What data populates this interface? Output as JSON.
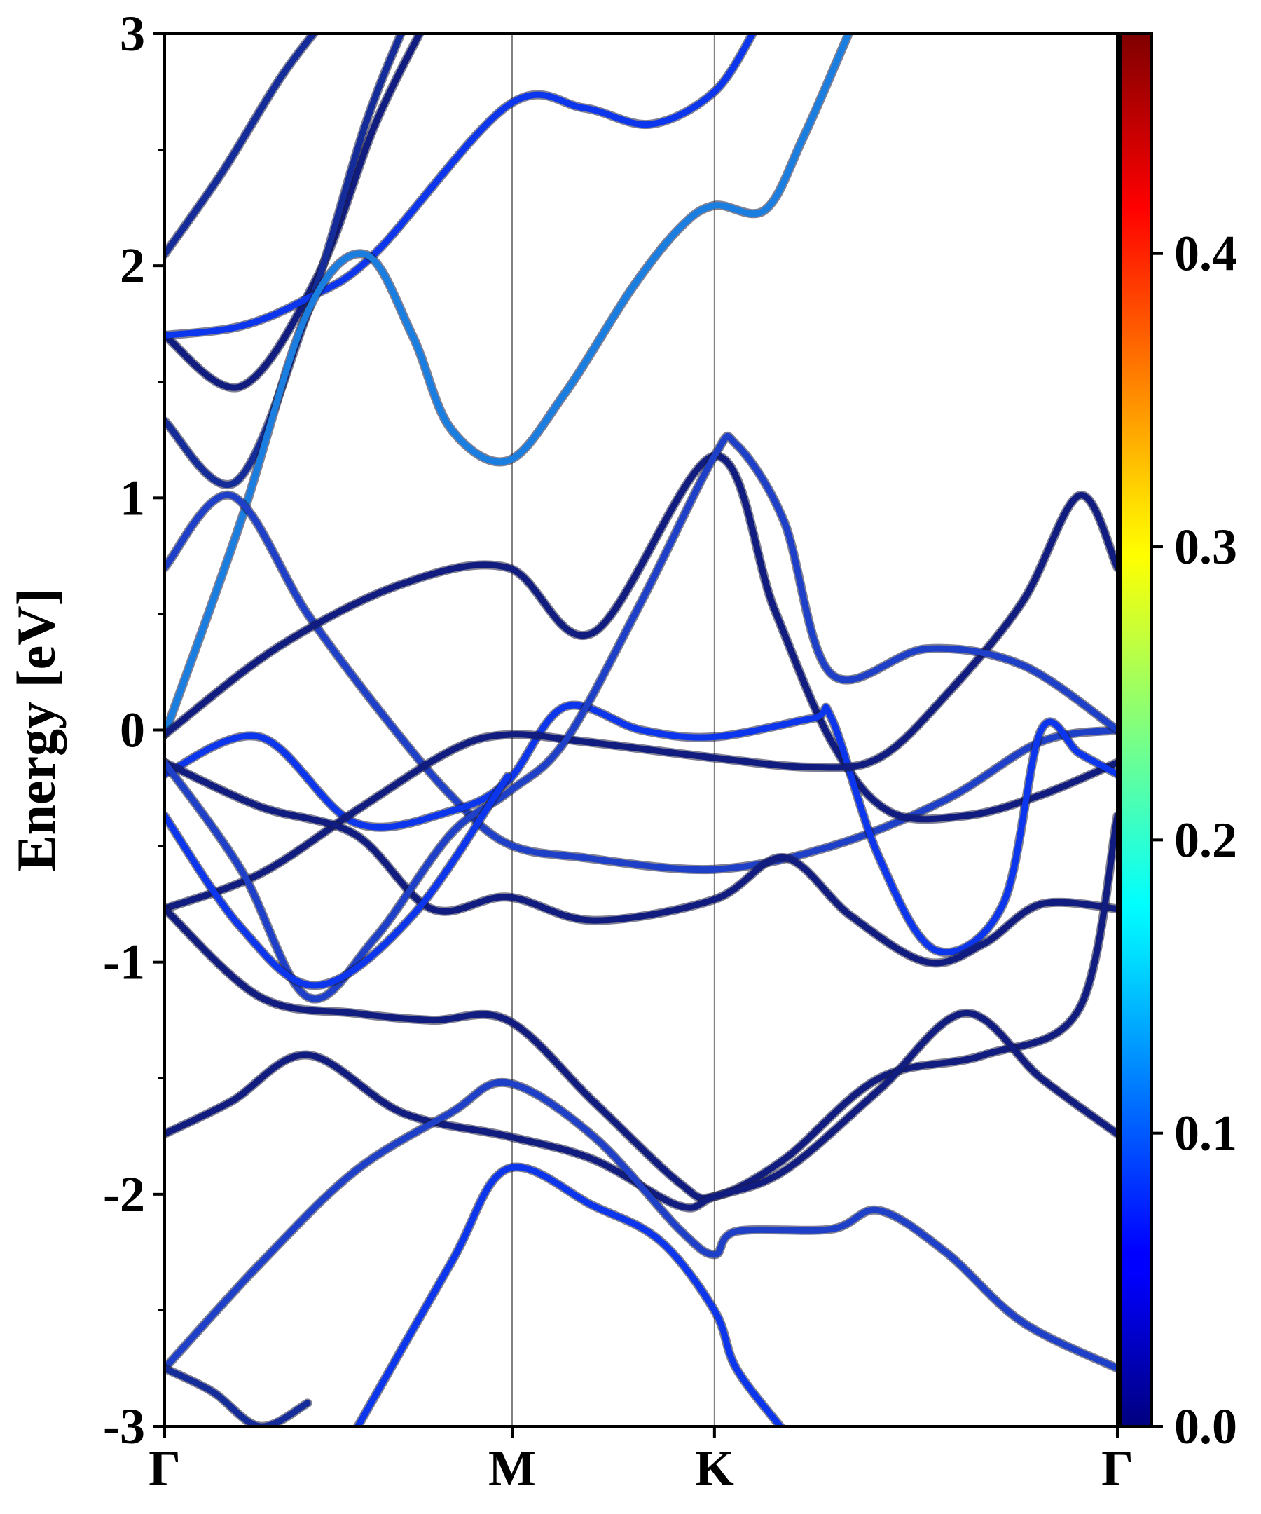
{
  "chart_data": {
    "type": "line",
    "ylabel": "Energy [eV]",
    "xlabel": "",
    "ylim": [
      -3,
      3
    ],
    "yticks": [
      {
        "value": 3,
        "label": "3"
      },
      {
        "value": 2,
        "label": "2"
      },
      {
        "value": 1,
        "label": "1"
      },
      {
        "value": 0,
        "label": "0"
      },
      {
        "value": -1,
        "label": "-1"
      },
      {
        "value": -2,
        "label": "-2"
      },
      {
        "value": -3,
        "label": "-3"
      }
    ],
    "xlim": [
      0,
      1
    ],
    "kpoints": [
      {
        "label": "Γ",
        "x": 0.0
      },
      {
        "label": "M",
        "x": 0.3647
      },
      {
        "label": "K",
        "x": 0.5771
      },
      {
        "label": "Γ",
        "x": 1.0
      }
    ],
    "grid": false,
    "colorbar": {
      "cmap": "jet",
      "range": [
        0.0,
        0.475
      ],
      "ticks": [
        {
          "value": 0.0,
          "label": "0.0"
        },
        {
          "value": 0.1,
          "label": "0.1"
        },
        {
          "value": 0.2,
          "label": "0.2"
        },
        {
          "value": 0.3,
          "label": "0.3"
        },
        {
          "value": 0.4,
          "label": "0.4"
        }
      ]
    },
    "series": [
      {
        "color": "#142c9a",
        "points": [
          [
            0.0,
            2.05
          ],
          [
            0.06,
            2.4
          ],
          [
            0.12,
            2.8
          ],
          [
            0.16,
            3.02
          ]
        ]
      },
      {
        "color": "#101c80",
        "points": [
          [
            0.0,
            1.7
          ],
          [
            0.08,
            1.48
          ],
          [
            0.16,
            1.95
          ],
          [
            0.22,
            2.6
          ],
          [
            0.27,
            3.02
          ]
        ]
      },
      {
        "color": "#142c9a",
        "points": [
          [
            0.0,
            1.33
          ],
          [
            0.075,
            1.07
          ],
          [
            0.15,
            1.8
          ],
          [
            0.21,
            2.6
          ],
          [
            0.25,
            3.02
          ]
        ]
      },
      {
        "color": "#0c35ee",
        "points": [
          [
            0.0,
            1.7
          ],
          [
            0.08,
            1.74
          ],
          [
            0.15,
            1.86
          ],
          [
            0.22,
            2.05
          ],
          [
            0.36,
            2.69
          ],
          [
            0.44,
            2.68
          ],
          [
            0.51,
            2.61
          ],
          [
            0.577,
            2.75
          ],
          [
            0.62,
            3.02
          ]
        ]
      },
      {
        "color": "#1a7ee0",
        "points": [
          [
            0.0,
            -0.02
          ],
          [
            0.08,
            0.9
          ],
          [
            0.15,
            1.8
          ],
          [
            0.21,
            2.05
          ],
          [
            0.26,
            1.7
          ],
          [
            0.3,
            1.3
          ],
          [
            0.36,
            1.16
          ],
          [
            0.42,
            1.45
          ],
          [
            0.49,
            1.9
          ],
          [
            0.54,
            2.16
          ],
          [
            0.577,
            2.26
          ],
          [
            0.63,
            2.24
          ],
          [
            0.67,
            2.55
          ],
          [
            0.72,
            3.02
          ]
        ]
      },
      {
        "color": "#1e40c8",
        "points": [
          [
            0.0,
            0.7
          ],
          [
            0.07,
            1.01
          ],
          [
            0.15,
            0.5
          ],
          [
            0.23,
            0.06
          ],
          [
            0.3,
            -0.28
          ],
          [
            0.36,
            -0.49
          ],
          [
            0.44,
            -0.55
          ],
          [
            0.577,
            -0.6
          ],
          [
            0.7,
            -0.5
          ],
          [
            0.82,
            -0.3
          ],
          [
            0.92,
            -0.05
          ],
          [
            1.0,
            0.0
          ]
        ]
      },
      {
        "color": "#101c80",
        "points": [
          [
            0.0,
            -0.02
          ],
          [
            0.12,
            0.36
          ],
          [
            0.25,
            0.63
          ],
          [
            0.36,
            0.7
          ],
          [
            0.45,
            0.42
          ],
          [
            0.577,
            1.18
          ],
          [
            0.64,
            0.52
          ],
          [
            0.7,
            -0.05
          ],
          [
            0.76,
            -0.35
          ],
          [
            0.84,
            -0.37
          ],
          [
            0.92,
            -0.28
          ],
          [
            1.0,
            -0.14
          ]
        ]
      },
      {
        "color": "#0c35ee",
        "points": [
          [
            0.0,
            -0.19
          ],
          [
            0.1,
            -0.03
          ],
          [
            0.2,
            -0.4
          ],
          [
            0.3,
            -0.35
          ],
          [
            0.36,
            -0.22
          ],
          [
            0.42,
            0.1
          ],
          [
            0.5,
            0.0
          ],
          [
            0.577,
            -0.03
          ],
          [
            0.68,
            0.05
          ],
          [
            0.7,
            0.05
          ],
          [
            0.75,
            -0.55
          ],
          [
            0.81,
            -0.95
          ],
          [
            0.88,
            -0.75
          ],
          [
            0.92,
            0.0
          ],
          [
            0.96,
            -0.1
          ],
          [
            1.0,
            -0.19
          ]
        ]
      },
      {
        "color": "#101c80",
        "points": [
          [
            0.0,
            -0.77
          ],
          [
            0.1,
            -0.62
          ],
          [
            0.2,
            -0.35
          ],
          [
            0.3,
            -0.09
          ],
          [
            0.36,
            -0.02
          ],
          [
            0.44,
            -0.05
          ],
          [
            0.577,
            -0.12
          ],
          [
            0.68,
            -0.16
          ],
          [
            0.75,
            -0.12
          ],
          [
            0.82,
            0.15
          ],
          [
            0.9,
            0.55
          ],
          [
            0.96,
            1.01
          ],
          [
            1.0,
            0.7
          ]
        ]
      },
      {
        "color": "#101c80",
        "points": [
          [
            0.0,
            -0.14
          ],
          [
            0.1,
            -0.33
          ],
          [
            0.2,
            -0.45
          ],
          [
            0.28,
            -0.77
          ],
          [
            0.36,
            -0.72
          ],
          [
            0.45,
            -0.82
          ],
          [
            0.577,
            -0.73
          ],
          [
            0.65,
            -0.55
          ],
          [
            0.72,
            -0.8
          ],
          [
            0.8,
            -1.0
          ],
          [
            0.86,
            -0.92
          ],
          [
            0.92,
            -0.75
          ],
          [
            1.0,
            -0.77
          ]
        ]
      },
      {
        "color": "#1e40c8",
        "points": [
          [
            0.0,
            -0.14
          ],
          [
            0.08,
            -0.6
          ],
          [
            0.15,
            -1.15
          ],
          [
            0.22,
            -0.9
          ],
          [
            0.3,
            -0.45
          ],
          [
            0.36,
            -0.27
          ],
          [
            0.42,
            -0.05
          ],
          [
            0.5,
            0.55
          ],
          [
            0.577,
            1.18
          ],
          [
            0.6,
            1.23
          ],
          [
            0.65,
            0.9
          ],
          [
            0.7,
            0.24
          ],
          [
            0.8,
            0.35
          ],
          [
            0.9,
            0.28
          ],
          [
            1.0,
            0.0
          ]
        ]
      },
      {
        "color": "#0c35ee",
        "points": [
          [
            0.0,
            -0.37
          ],
          [
            0.08,
            -0.85
          ],
          [
            0.16,
            -1.1
          ],
          [
            0.26,
            -0.8
          ],
          [
            0.36,
            -0.2
          ]
        ]
      },
      {
        "color": "#101c80",
        "points": [
          [
            0.0,
            -0.77
          ],
          [
            0.1,
            -1.15
          ],
          [
            0.2,
            -1.22
          ],
          [
            0.28,
            -1.25
          ],
          [
            0.36,
            -1.25
          ],
          [
            0.45,
            -1.6
          ],
          [
            0.54,
            -1.95
          ],
          [
            0.577,
            -2.01
          ],
          [
            0.65,
            -1.85
          ],
          [
            0.75,
            -1.5
          ],
          [
            0.86,
            -1.4
          ],
          [
            0.96,
            -1.2
          ],
          [
            1.0,
            -0.37
          ]
        ]
      },
      {
        "color": "#101c80",
        "points": [
          [
            0.0,
            -1.74
          ],
          [
            0.07,
            -1.6
          ],
          [
            0.15,
            -1.4
          ],
          [
            0.25,
            -1.65
          ],
          [
            0.36,
            -1.75
          ],
          [
            0.45,
            -1.85
          ],
          [
            0.54,
            -2.05
          ],
          [
            0.577,
            -2.01
          ],
          [
            0.65,
            -1.9
          ],
          [
            0.75,
            -1.55
          ],
          [
            0.84,
            -1.22
          ],
          [
            0.92,
            -1.5
          ],
          [
            1.0,
            -1.74
          ]
        ]
      },
      {
        "color": "#1e40c8",
        "points": [
          [
            0.0,
            -2.75
          ],
          [
            0.1,
            -2.3
          ],
          [
            0.2,
            -1.9
          ],
          [
            0.3,
            -1.65
          ],
          [
            0.36,
            -1.52
          ],
          [
            0.45,
            -1.75
          ],
          [
            0.54,
            -2.15
          ],
          [
            0.577,
            -2.26
          ],
          [
            0.6,
            -2.16
          ],
          [
            0.7,
            -2.15
          ],
          [
            0.75,
            -2.07
          ],
          [
            0.82,
            -2.25
          ],
          [
            0.9,
            -2.55
          ],
          [
            1.0,
            -2.75
          ]
        ]
      },
      {
        "color": "#0c35ee",
        "points": [
          [
            0.2,
            -3.02
          ],
          [
            0.3,
            -2.3
          ],
          [
            0.36,
            -1.89
          ],
          [
            0.45,
            -2.05
          ],
          [
            0.52,
            -2.2
          ],
          [
            0.577,
            -2.5
          ],
          [
            0.6,
            -2.75
          ],
          [
            0.65,
            -3.02
          ]
        ]
      },
      {
        "color": "#142c9a",
        "points": [
          [
            0.0,
            -2.75
          ],
          [
            0.05,
            -2.85
          ],
          [
            0.1,
            -3.0
          ],
          [
            0.15,
            -2.9
          ]
        ]
      }
    ]
  }
}
